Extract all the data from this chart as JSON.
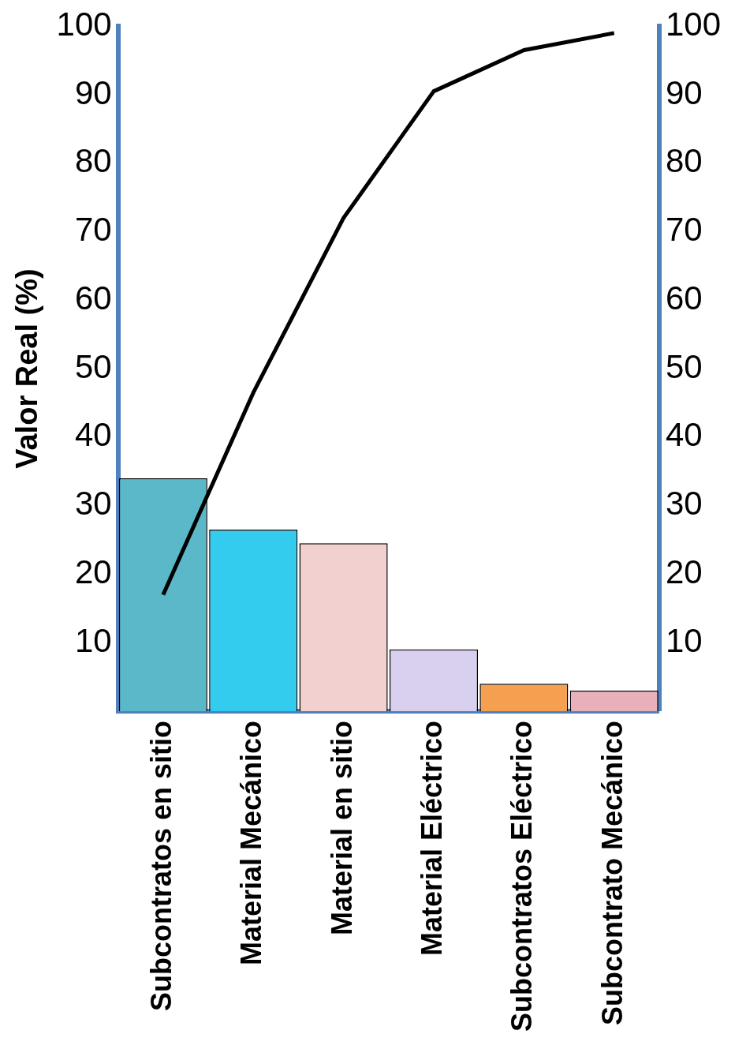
{
  "chart_data": {
    "type": "bar",
    "ylabel": "Valor Real (%)",
    "categories": [
      "Subcontratos en sitio",
      "Material Mecánico",
      "Material en sitio",
      "Material Eléctrico",
      "Subcontratos Eléctrico",
      "Subcontrato Mecánico"
    ],
    "series": [
      {
        "values": [
          34,
          26.5,
          24.5,
          9,
          4,
          3
        ],
        "colors": [
          "#5bb8c8",
          "#33ccee",
          "#f2d0d0",
          "#d8d0ee",
          "#f4a050",
          "#e8b0b8"
        ]
      },
      {
        "type": "line",
        "values": [
          17,
          46.5,
          72,
          90.5,
          96.5,
          99
        ],
        "color": "#000000"
      }
    ],
    "ylim": [
      0,
      100
    ],
    "yticks": [
      10,
      20,
      30,
      40,
      50,
      60,
      70,
      80,
      90,
      100
    ],
    "y2lim": [
      0,
      100
    ],
    "y2ticks": [
      10,
      20,
      30,
      40,
      50,
      60,
      70,
      80,
      90,
      100
    ],
    "grid": false,
    "legend": false,
    "marker": "none",
    "line_style": "solid"
  }
}
